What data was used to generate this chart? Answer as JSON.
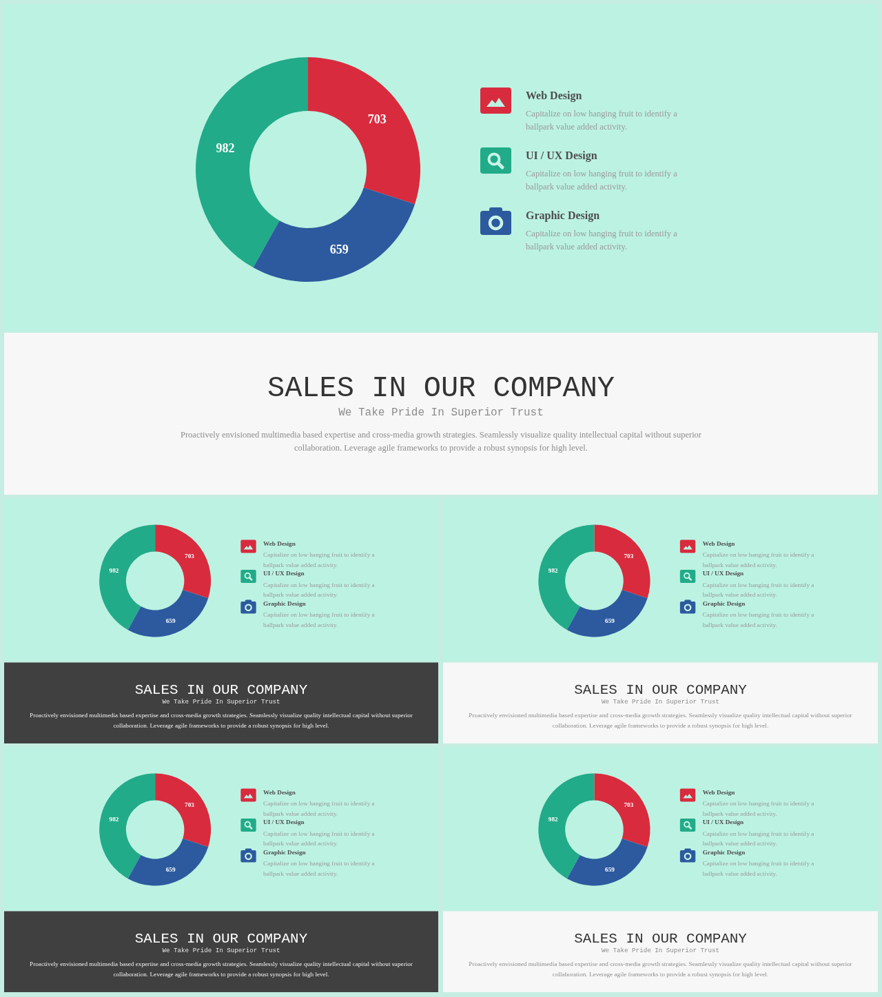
{
  "chart_data": [
    {
      "type": "donut",
      "title": "SALES IN OUR COMPANY",
      "subtitle": "We Take Pride In Superior Trust",
      "categories": [
        "Web Design",
        "UI / UX Design",
        "Graphic Design"
      ],
      "values": [
        703,
        982,
        659
      ],
      "colors": [
        "#d92b3e",
        "#22ab88",
        "#2d5a9e"
      ],
      "data_labels": true,
      "legend": "right",
      "annotations": [
        "Capitalize on low hanging fruit to identify a ballpark value added activity.",
        "Capitalize on low hanging fruit to identify a ballpark value added activity.",
        "Capitalize on low hanging fruit to identify a ballpark value added activity.",
        "Proactively envisioned multimedia based expertise and cross-media growth strategies. Seamlessly visualize quality intellectual capital without superior collaboration. Leverage agile frameworks to provide a robust synopsis for high level."
      ]
    },
    {
      "type": "donut",
      "title": "SALES IN OUR COMPANY",
      "subtitle": "We Take Pride In Superior Trust",
      "categories": [
        "Web Design",
        "UI / UX Design",
        "Graphic Design"
      ],
      "values": [
        703,
        982,
        659
      ],
      "colors": [
        "#d92b3e",
        "#22ab88",
        "#2d5a9e"
      ],
      "data_labels": true,
      "legend": "right",
      "annotations": [
        "Capitalize on low hanging fruit to identify a ballpark value added activity.",
        "Capitalize on low hanging fruit to identify a ballpark value added activity.",
        "Capitalize on low hanging fruit to identify a ballpark value added activity.",
        "Proactively envisioned multimedia based expertise and cross-media growth strategies. Seamlessly visualize quality intellectual capital without superior collaboration. Leverage agile frameworks to provide a robust synopsis for high level."
      ]
    },
    {
      "type": "donut",
      "title": "SALES IN OUR COMPANY",
      "subtitle": "We Take Pride In Superior Trust",
      "categories": [
        "Web Design",
        "UI / UX Design",
        "Graphic Design"
      ],
      "values": [
        703,
        982,
        659
      ],
      "colors": [
        "#d92b3e",
        "#22ab88",
        "#2d5a9e"
      ],
      "data_labels": true,
      "legend": "right",
      "annotations": [
        "Capitalize on low hanging fruit to identify a ballpark value added activity.",
        "Capitalize on low hanging fruit to identify a ballpark value added activity.",
        "Capitalize on low hanging fruit to identify a ballpark value added activity.",
        "Proactively envisioned multimedia based expertise and cross-media growth strategies. Seamlessly visualize quality intellectual capital without superior collaboration. Leverage agile frameworks to provide a robust synopsis for high level."
      ]
    },
    {
      "type": "donut",
      "title": "SALES IN OUR COMPANY",
      "subtitle": "We Take Pride In Superior Trust",
      "categories": [
        "Web Design",
        "UI / UX Design",
        "Graphic Design"
      ],
      "values": [
        703,
        982,
        659
      ],
      "colors": [
        "#d92b3e",
        "#22ab88",
        "#2d5a9e"
      ],
      "data_labels": true,
      "legend": "right",
      "annotations": [
        "Capitalize on low hanging fruit to identify a ballpark value added activity.",
        "Capitalize on low hanging fruit to identify a ballpark value added activity.",
        "Capitalize on low hanging fruit to identify a ballpark value added activity.",
        "Proactively envisioned multimedia based expertise and cross-media growth strategies. Seamlessly visualize quality intellectual capital without superior collaboration. Leverage agile frameworks to provide a robust synopsis for high level."
      ]
    },
    {
      "type": "donut",
      "title": "SALES IN OUR COMPANY",
      "subtitle": "We Take Pride In Superior Trust",
      "categories": [
        "Web Design",
        "UI / UX Design",
        "Graphic Design"
      ],
      "values": [
        703,
        982,
        659
      ],
      "colors": [
        "#d92b3e",
        "#22ab88",
        "#2d5a9e"
      ],
      "data_labels": true,
      "legend": "right",
      "annotations": [
        "Capitalize on low hanging fruit to identify a ballpark value added activity.",
        "Capitalize on low hanging fruit to identify a ballpark value added activity.",
        "Capitalize on low hanging fruit to identify a ballpark value added activity.",
        "Proactively envisioned multimedia based expertise and cross-media growth strategies. Seamlessly visualize quality intellectual capital without superior collaboration. Leverage agile frameworks to provide a robust synopsis for high level."
      ]
    }
  ]
}
